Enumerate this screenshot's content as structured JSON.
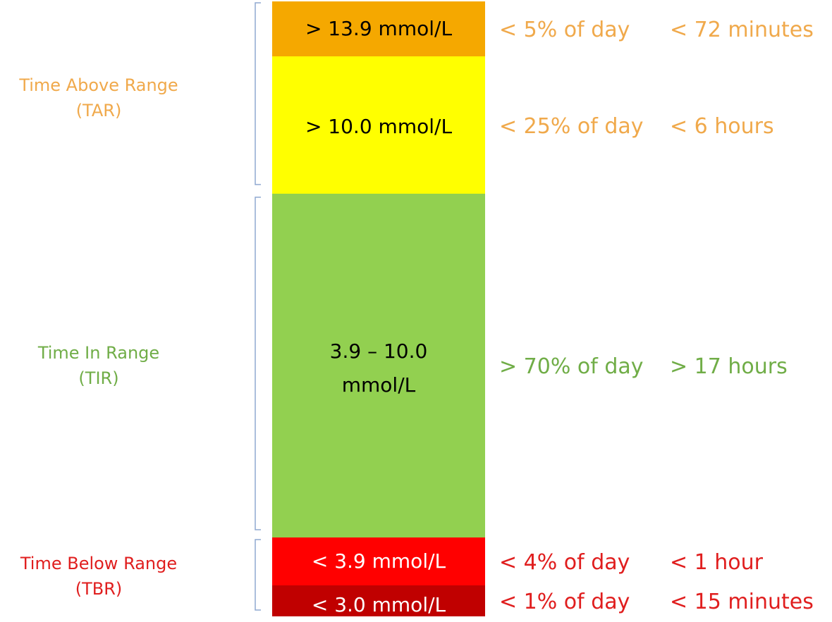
{
  "groups": {
    "tar": {
      "title": "Time Above Range",
      "abbr": "(TAR)",
      "color": "#F0A94B"
    },
    "tir": {
      "title": "Time In Range",
      "abbr": "(TIR)",
      "color": "#70AD47"
    },
    "tbr": {
      "title": "Time Below Range",
      "abbr": "(TBR)",
      "color": "#E01E1E"
    }
  },
  "bands": [
    {
      "range": "> 13.9 mmol/L",
      "percent": "< 5% of day",
      "time": "< 72 minutes",
      "fill": "#F5A800",
      "text_color": "#000000",
      "label_color": "#F0A94B"
    },
    {
      "range": "> 10.0 mmol/L",
      "percent": "< 25% of day",
      "time": "< 6 hours",
      "fill": "#FFFF00",
      "text_color": "#000000",
      "label_color": "#F0A94B"
    },
    {
      "range_line1": "3.9 – 10.0",
      "range_line2": "mmol/L",
      "percent": "> 70% of day",
      "time": "> 17 hours",
      "fill": "#92D050",
      "text_color": "#000000",
      "label_color": "#70AD47"
    },
    {
      "range": "< 3.9 mmol/L",
      "percent": "< 4% of day",
      "time": "< 1 hour",
      "fill": "#FF0000",
      "text_color": "#FFFFFF",
      "label_color": "#E01E1E"
    },
    {
      "range": "< 3.0 mmol/L",
      "percent": "< 1% of day",
      "time": "< 15 minutes",
      "fill": "#C00000",
      "text_color": "#FFFFFF",
      "label_color": "#E01E1E"
    }
  ],
  "bracket_color": "#8FA9D0"
}
